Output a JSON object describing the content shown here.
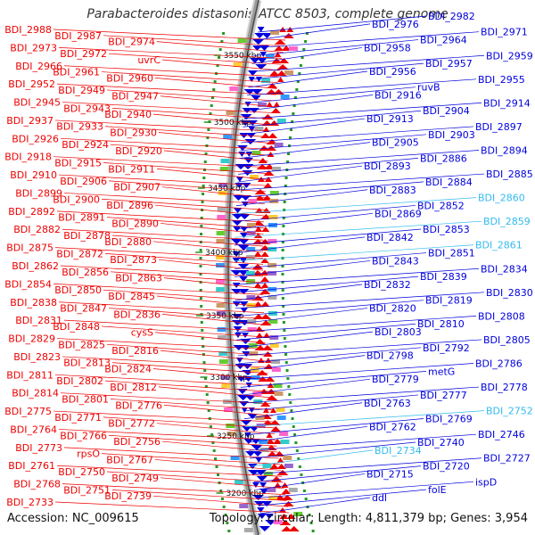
{
  "title": "Parabacteroides distasonis ATCC 8503, complete genome",
  "accession": "Accession: NC_009615",
  "summary": "Topology: circular; Length: 4,811,379 bp; Genes: 3,954",
  "colors": {
    "reverse_strand": "#ee0000",
    "forward_strand": "#0000dd",
    "highlight_forward": "#33bbee",
    "backbone": "#999999",
    "ticks": "#229922"
  },
  "kbp_ticks": [
    "3550 kbp",
    "3500 kbp",
    "3450 kbp",
    "3400 kbp",
    "3350 kbp",
    "3300 kbp",
    "3250 kbp",
    "3200 kbp"
  ],
  "left_labels": [
    "BDI_2988",
    "BDI_2987",
    "BDI_2974",
    "BDI_2973",
    "BDI_2972",
    "uvrC",
    "BDI_2966",
    "BDI_2961",
    "BDI_2960",
    "BDI_2952",
    "BDI_2949",
    "BDI_2947",
    "BDI_2945",
    "BDI_2943",
    "BDI_2940",
    "BDI_2937",
    "BDI_2933",
    "BDI_2930",
    "BDI_2926",
    "BDI_2924",
    "BDI_2920",
    "BDI_2918",
    "BDI_2915",
    "BDI_2911",
    "BDI_2910",
    "BDI_2906",
    "BDI_2907",
    "BDI_2899",
    "BDI_2900",
    "BDI_2896",
    "BDI_2892",
    "BDI_2891",
    "BDI_2890",
    "BDI_2882",
    "BDI_2878",
    "BDI_2880",
    "BDI_2875",
    "BDI_2872",
    "BDI_2873",
    "BDI_2862",
    "BDI_2856",
    "BDI_2863",
    "BDI_2854",
    "BDI_2850",
    "BDI_2845",
    "BDI_2838",
    "BDI_2847",
    "BDI_2836",
    "BDI_2831",
    "BDI_2848",
    "cysS",
    "BDI_2829",
    "BDI_2825",
    "BDI_2816",
    "BDI_2823",
    "BDI_2813",
    "BDI_2824",
    "BDI_2811",
    "BDI_2802",
    "BDI_2812",
    "BDI_2814",
    "BDI_2801",
    "BDI_2776",
    "BDI_2775",
    "BDI_2771",
    "BDI_2772",
    "BDI_2764",
    "BDI_2766",
    "BDI_2756",
    "BDI_2773",
    "rpsO",
    "BDI_2767",
    "BDI_2761",
    "BDI_2750",
    "BDI_2749",
    "BDI_2768",
    "BDI_2751",
    "BDI_2739",
    "BDI_2733"
  ],
  "right_labels": [
    "BDI_2982",
    "BDI_2976",
    "BDI_2971",
    "BDI_2964",
    "BDI_2958",
    "BDI_2959",
    "BDI_2957",
    "BDI_2956",
    "BDI_2955",
    "ruvB",
    "BDI_2916",
    "BDI_2914",
    "BDI_2904",
    "BDI_2913",
    "BDI_2897",
    "BDI_2903",
    "BDI_2905",
    "BDI_2894",
    "BDI_2886",
    "BDI_2893",
    "BDI_2885",
    "BDI_2884",
    "BDI_2883",
    "BDI_2860",
    "BDI_2852",
    "BDI_2869",
    "BDI_2859",
    "BDI_2853",
    "BDI_2842",
    "BDI_2861",
    "BDI_2851",
    "BDI_2843",
    "BDI_2834",
    "BDI_2839",
    "BDI_2832",
    "BDI_2830",
    "BDI_2819",
    "BDI_2820",
    "BDI_2808",
    "BDI_2810",
    "BDI_2803",
    "BDI_2805",
    "BDI_2792",
    "BDI_2798",
    "BDI_2786",
    "metG",
    "BDI_2779",
    "BDI_2778",
    "BDI_2777",
    "BDI_2763",
    "BDI_2752",
    "BDI_2769",
    "BDI_2762",
    "BDI_2746",
    "BDI_2740",
    "BDI_2734",
    "BDI_2727",
    "BDI_2720",
    "BDI_2715",
    "ispD",
    "folE",
    "ddl"
  ]
}
